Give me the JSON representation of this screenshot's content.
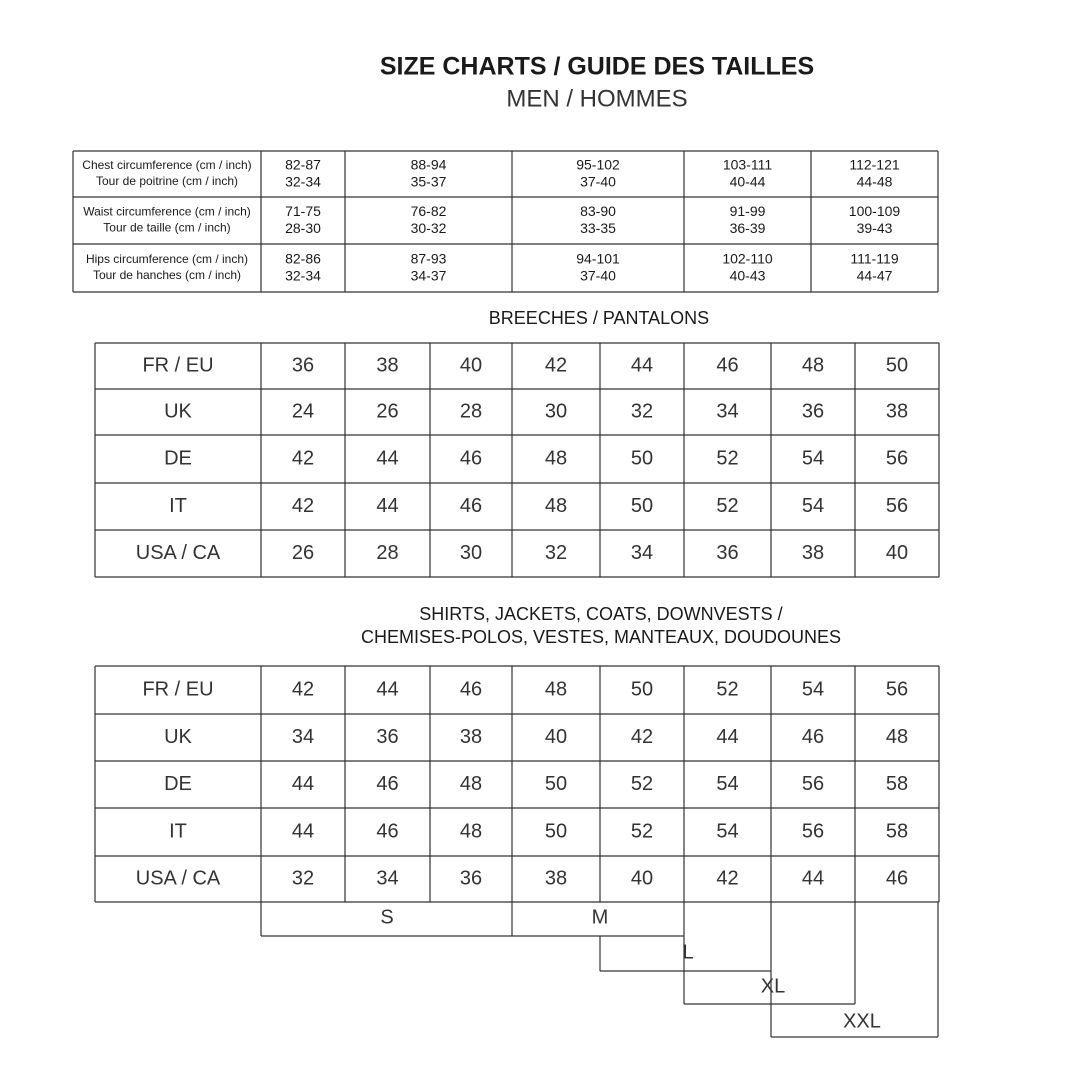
{
  "header": {
    "title": "SIZE CHARTS / GUIDE DES TAILLES",
    "subtitle": "MEN / HOMMES"
  },
  "measurements": {
    "rows": [
      {
        "label": [
          "Chest circumference (cm / inch)",
          "Tour de poitrine (cm / inch)"
        ],
        "cells": [
          [
            "82-87",
            "32-34"
          ],
          [
            "88-94",
            "35-37"
          ],
          [
            "95-102",
            "37-40"
          ],
          [
            "103-111",
            "40-44"
          ],
          [
            "112-121",
            "44-48"
          ]
        ]
      },
      {
        "label": [
          "Waist circumference (cm / inch)",
          "Tour de taille (cm / inch)"
        ],
        "cells": [
          [
            "71-75",
            "28-30"
          ],
          [
            "76-82",
            "30-32"
          ],
          [
            "83-90",
            "33-35"
          ],
          [
            "91-99",
            "36-39"
          ],
          [
            "100-109",
            "39-43"
          ]
        ]
      },
      {
        "label": [
          "Hips circumference (cm / inch)",
          "Tour de hanches (cm / inch)"
        ],
        "cells": [
          [
            "82-86",
            "32-34"
          ],
          [
            "87-93",
            "34-37"
          ],
          [
            "94-101",
            "37-40"
          ],
          [
            "102-110",
            "40-43"
          ],
          [
            "111-119",
            "44-47"
          ]
        ]
      }
    ]
  },
  "breeches": {
    "title": "BREECHES / PANTALONS",
    "rows": [
      [
        "FR / EU",
        36,
        38,
        40,
        42,
        44,
        46,
        48,
        50
      ],
      [
        "UK",
        24,
        26,
        28,
        30,
        32,
        34,
        36,
        38
      ],
      [
        "DE",
        42,
        44,
        46,
        48,
        50,
        52,
        54,
        56
      ],
      [
        "IT",
        42,
        44,
        46,
        48,
        50,
        52,
        54,
        56
      ],
      [
        "USA / CA",
        26,
        28,
        30,
        32,
        34,
        36,
        38,
        40
      ]
    ]
  },
  "shirts": {
    "title": [
      "SHIRTS, JACKETS, COATS, DOWNVESTS /",
      "CHEMISES-POLOS, VESTES, MANTEAUX, DOUDOUNES"
    ],
    "rows": [
      [
        "FR / EU",
        42,
        44,
        46,
        48,
        50,
        52,
        54,
        56
      ],
      [
        "UK",
        34,
        36,
        38,
        40,
        42,
        44,
        46,
        48
      ],
      [
        "DE",
        44,
        46,
        48,
        50,
        52,
        54,
        56,
        58
      ],
      [
        "IT",
        44,
        46,
        48,
        50,
        52,
        54,
        56,
        58
      ],
      [
        "USA / CA",
        32,
        34,
        36,
        38,
        40,
        42,
        44,
        46
      ]
    ],
    "sizes": [
      "S",
      "M",
      "L",
      "XL",
      "XXL"
    ]
  }
}
